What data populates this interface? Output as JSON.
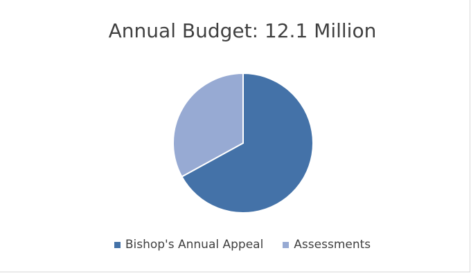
{
  "chart_data": {
    "type": "pie",
    "title": "Annual Budget: 12.1 Million",
    "categories": [
      "Bishop's Annual Appeal",
      "Assessments"
    ],
    "values": [
      67,
      33
    ],
    "colors": [
      "#4472a8",
      "#97aad3"
    ],
    "start_angle_deg": 0,
    "direction": "clockwise",
    "legend_position": "bottom"
  }
}
